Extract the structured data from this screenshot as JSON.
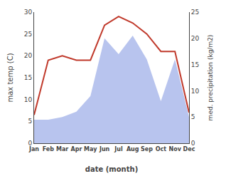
{
  "chart_data": {
    "type": "line",
    "xlabel": "date (month)",
    "ylabel": "max temp (C)",
    "y2label": "med. precipitation (kg/m2)",
    "categories": [
      "Jan",
      "Feb",
      "Mar",
      "Apr",
      "May",
      "Jun",
      "Jul",
      "Aug",
      "Sep",
      "Oct",
      "Nov",
      "Dec"
    ],
    "series": [
      {
        "type": "area",
        "color": "#b8c4ee",
        "axis": "y2",
        "values": [
          4.5,
          4.5,
          5.0,
          6.0,
          9.0,
          20.0,
          17.0,
          20.5,
          16.0,
          8.0,
          16.0,
          5.0
        ]
      },
      {
        "type": "line",
        "color": "#c0392b",
        "values": [
          6.5,
          19.0,
          20.0,
          19.0,
          19.0,
          27.0,
          29.0,
          27.5,
          25.0,
          21.0,
          21.0,
          7.0
        ]
      }
    ],
    "ylim": [
      0,
      30
    ],
    "yticks": [
      0,
      5,
      10,
      15,
      20,
      25,
      30
    ],
    "y2lim": [
      0,
      25
    ],
    "y2ticks": [
      0,
      5,
      10,
      15,
      20,
      25
    ],
    "grid": false
  }
}
